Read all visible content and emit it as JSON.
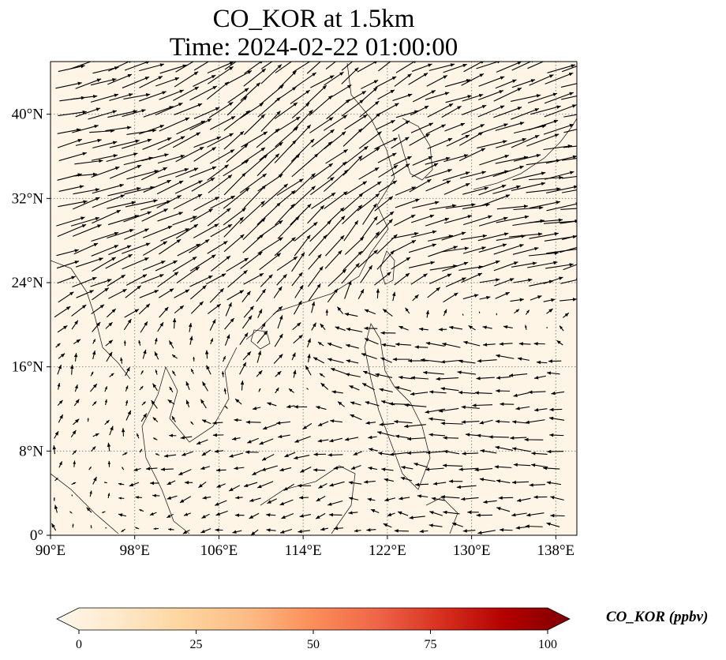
{
  "map": {
    "title_line1": "CO_KOR at 1.5km",
    "title_line2": "Time: 2024-02-22 01:00:00",
    "projection": "PlateCarree",
    "extent": {
      "lon_min": 90,
      "lon_max": 140,
      "lat_min": 0,
      "lat_max": 45
    },
    "x_ticks": [
      {
        "value": 90,
        "label": "90°E"
      },
      {
        "value": 98,
        "label": "98°E"
      },
      {
        "value": 106,
        "label": "106°E"
      },
      {
        "value": 114,
        "label": "114°E"
      },
      {
        "value": 122,
        "label": "122°E"
      },
      {
        "value": 130,
        "label": "130°E"
      },
      {
        "value": 138,
        "label": "138°E"
      }
    ],
    "y_ticks": [
      {
        "value": 0,
        "label": "0°"
      },
      {
        "value": 8,
        "label": "8°N"
      },
      {
        "value": 16,
        "label": "16°N"
      },
      {
        "value": 24,
        "label": "24°N"
      },
      {
        "value": 32,
        "label": "32°N"
      },
      {
        "value": 40,
        "label": "40°N"
      }
    ],
    "gridlines": "dotted",
    "background_color": "#fff5e6",
    "overlay": "wind vectors (quiver)"
  },
  "colorbar": {
    "label": "CO_KOR (ppbv)",
    "colormap": "OrRd",
    "min": 0,
    "max": 100,
    "extend": "both",
    "ticks": [
      {
        "value": 0,
        "label": "0"
      },
      {
        "value": 25,
        "label": "25"
      },
      {
        "value": 50,
        "label": "50"
      },
      {
        "value": 75,
        "label": "75"
      },
      {
        "value": 100,
        "label": "100"
      }
    ],
    "colors": [
      "#fff7ec",
      "#fee8c8",
      "#fdd49e",
      "#fdbb84",
      "#fc8d59",
      "#ef6548",
      "#d7301f",
      "#b30000",
      "#7f0000"
    ]
  },
  "wind_flow": [
    {
      "lon": 92,
      "lat": 36,
      "u": 8,
      "v": 1.5
    },
    {
      "lon": 96,
      "lat": 33,
      "u": 9,
      "v": 3
    },
    {
      "lon": 100,
      "lat": 30,
      "u": 8,
      "v": 3.5
    },
    {
      "lon": 104,
      "lat": 28,
      "u": 7,
      "v": 4
    },
    {
      "lon": 108,
      "lat": 30,
      "u": 7,
      "v": 6
    },
    {
      "lon": 112,
      "lat": 34,
      "u": 7,
      "v": 6
    },
    {
      "lon": 117,
      "lat": 38,
      "u": 6,
      "v": 5
    },
    {
      "lon": 122,
      "lat": 40,
      "u": 6,
      "v": 3
    },
    {
      "lon": 128,
      "lat": 40,
      "u": 7,
      "v": 3
    },
    {
      "lon": 132,
      "lat": 36,
      "u": 9,
      "v": 3
    },
    {
      "lon": 136,
      "lat": 32,
      "u": 10,
      "v": 1.5
    },
    {
      "lon": 126,
      "lat": 28,
      "u": 8,
      "v": 2
    },
    {
      "lon": 118,
      "lat": 26,
      "u": 5,
      "v": 6
    },
    {
      "lon": 120,
      "lat": 18,
      "u": -4,
      "v": 1
    },
    {
      "lon": 128,
      "lat": 14,
      "u": -6,
      "v": 0
    },
    {
      "lon": 134,
      "lat": 10,
      "u": -5,
      "v": 0
    },
    {
      "lon": 112,
      "lat": 8,
      "u": -4,
      "v": -1
    },
    {
      "lon": 104,
      "lat": 6,
      "u": -3,
      "v": -1
    },
    {
      "lon": 96,
      "lat": 12,
      "u": 1,
      "v": 2
    },
    {
      "lon": 102,
      "lat": 14,
      "u": -1,
      "v": 2
    },
    {
      "lon": 110,
      "lat": 18,
      "u": 2,
      "v": 3
    }
  ]
}
